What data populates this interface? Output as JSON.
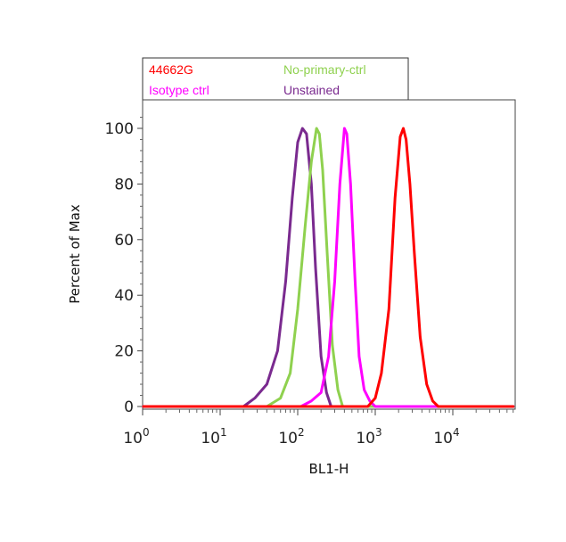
{
  "chart_data": {
    "type": "line",
    "title": "",
    "xlabel": "BL1-H",
    "ylabel": "Percent of Max",
    "x_scale": "log",
    "xlim": [
      1,
      60000
    ],
    "ylim": [
      0,
      110
    ],
    "x_ticks": [
      {
        "base": "10",
        "exp": "0",
        "value": 1
      },
      {
        "base": "10",
        "exp": "1",
        "value": 10
      },
      {
        "base": "10",
        "exp": "2",
        "value": 100
      },
      {
        "base": "10",
        "exp": "3",
        "value": 1000
      },
      {
        "base": "10",
        "exp": "4",
        "value": 10000
      }
    ],
    "y_ticks": [
      "0",
      "20",
      "40",
      "60",
      "80",
      "100"
    ],
    "grid": false,
    "legend_position": "top-left",
    "series": [
      {
        "name": "44662G",
        "color": "#ff0000",
        "x": [
          1,
          800,
          1000,
          1200,
          1500,
          1800,
          2100,
          2300,
          2500,
          2800,
          3200,
          3800,
          4600,
          5500,
          6500,
          60000
        ],
        "y": [
          0,
          0,
          3,
          12,
          35,
          75,
          97,
          100,
          96,
          80,
          55,
          25,
          8,
          2,
          0,
          0
        ]
      },
      {
        "name": "No-primary-ctrl",
        "color": "#8fd14f",
        "x": [
          1,
          40,
          60,
          80,
          100,
          125,
          150,
          175,
          190,
          210,
          240,
          280,
          330,
          380,
          60000
        ],
        "y": [
          0,
          0,
          3,
          12,
          35,
          65,
          88,
          100,
          98,
          85,
          55,
          22,
          6,
          0,
          0
        ]
      },
      {
        "name": "Isotype ctrl",
        "color": "#ff00ff",
        "x": [
          1,
          110,
          150,
          200,
          250,
          300,
          350,
          400,
          430,
          480,
          550,
          620,
          720,
          850,
          1000,
          60000
        ],
        "y": [
          0,
          0,
          2,
          5,
          18,
          45,
          80,
          100,
          98,
          80,
          45,
          18,
          6,
          2,
          0,
          0
        ]
      },
      {
        "name": "Unstained",
        "color": "#7a2a8f",
        "x": [
          1,
          20,
          28,
          40,
          55,
          70,
          85,
          100,
          115,
          130,
          150,
          170,
          200,
          235,
          270,
          60000
        ],
        "y": [
          0,
          0,
          3,
          8,
          20,
          45,
          75,
          95,
          100,
          98,
          80,
          50,
          18,
          5,
          0,
          0
        ]
      }
    ]
  }
}
